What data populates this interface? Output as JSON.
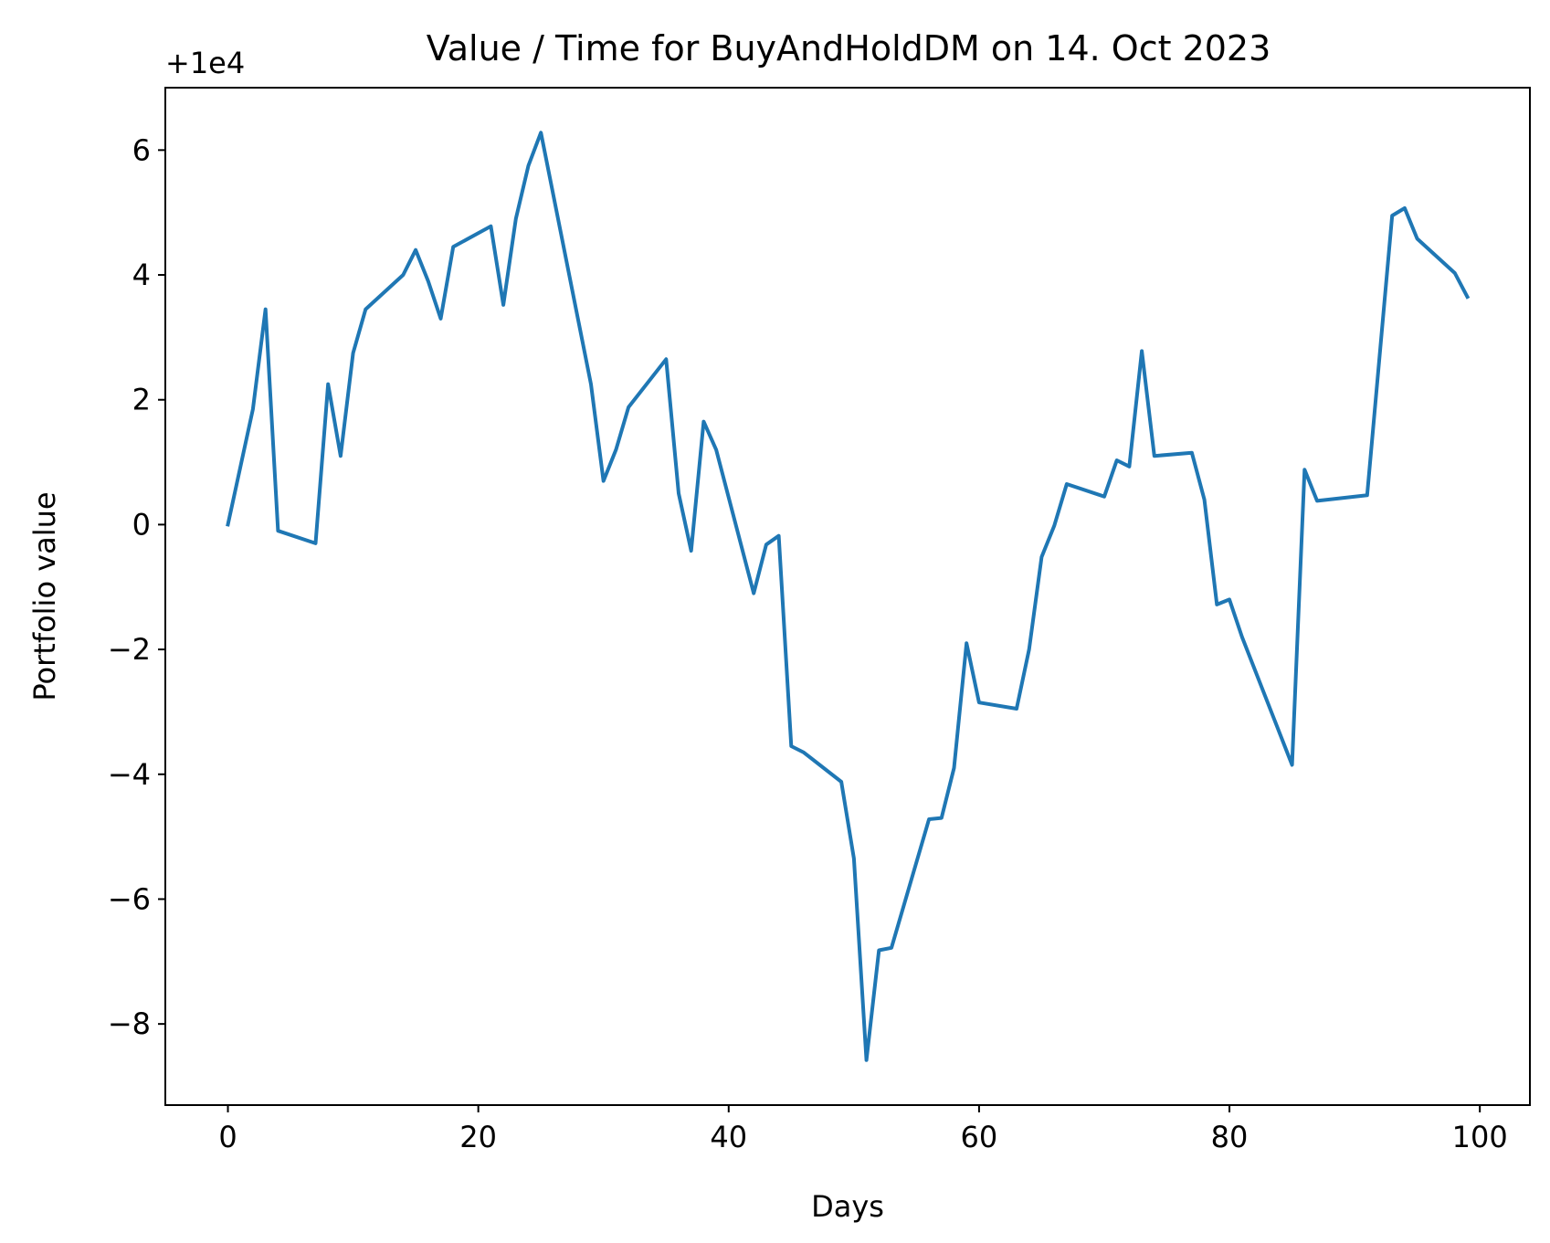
{
  "chart_data": {
    "type": "line",
    "title": "Value / Time for BuyAndHoldDM on 14. Oct 2023",
    "xlabel": "Days",
    "ylabel": "Portfolio value",
    "y_offset_label": "+1e4",
    "y_offset": 10000,
    "xlim": [
      -5,
      104
    ],
    "ylim": [
      -9.3,
      7.0
    ],
    "x_ticks": [
      0,
      20,
      40,
      60,
      80,
      100
    ],
    "x_tick_labels": [
      "0",
      "20",
      "40",
      "60",
      "80",
      "100"
    ],
    "y_ticks": [
      -8,
      -6,
      -4,
      -2,
      0,
      2,
      4,
      6
    ],
    "y_tick_labels": [
      "−8",
      "−6",
      "−4",
      "−2",
      "0",
      "2",
      "4",
      "6"
    ],
    "grid": false,
    "color": "#1f77b4",
    "series": [
      {
        "x": [
          0,
          2,
          3,
          4,
          7,
          8,
          9,
          10,
          11,
          14,
          15,
          16,
          17,
          18,
          21,
          22,
          23,
          24,
          25,
          29,
          30,
          31,
          32,
          35,
          36,
          37,
          38,
          39,
          42,
          43,
          44,
          45,
          46,
          49,
          50,
          51,
          52,
          53,
          56,
          57,
          58,
          59,
          60,
          63,
          64,
          65,
          66,
          67,
          70,
          71,
          72,
          73,
          74,
          77,
          78,
          79,
          80,
          81,
          85,
          86,
          87,
          91,
          93,
          94,
          95,
          98,
          99
        ],
        "y": [
          10000.0,
          10001.85,
          10003.45,
          9999.9,
          9999.7,
          10002.25,
          10001.1,
          10002.75,
          10003.45,
          10004.0,
          10004.4,
          10003.9,
          10003.3,
          10004.45,
          10004.78,
          10003.52,
          10004.9,
          10005.75,
          10006.28,
          10002.25,
          10000.7,
          10001.2,
          10001.88,
          10002.65,
          10000.5,
          9999.58,
          10001.65,
          10001.2,
          9998.9,
          9999.68,
          9999.82,
          9996.45,
          9996.35,
          9995.88,
          9994.65,
          9991.42,
          9993.18,
          9993.22,
          9995.28,
          9995.3,
          9996.1,
          9998.1,
          9997.15,
          9997.05,
          9998.0,
          9999.48,
          9999.98,
          10000.65,
          10000.45,
          10001.03,
          10000.93,
          10002.78,
          10001.1,
          10001.15,
          10000.4,
          9998.72,
          9998.8,
          9998.2,
          9996.15,
          10000.88,
          10000.38,
          10000.47,
          10004.95,
          10005.07,
          10004.58,
          10004.03,
          10003.65
        ]
      }
    ]
  }
}
